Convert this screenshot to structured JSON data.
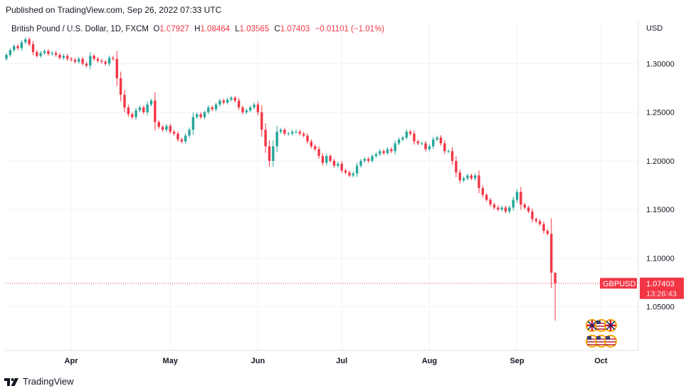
{
  "header": {
    "published": "Published on TradingView.com, Sep 26, 2022 07:33 UTC"
  },
  "legend": {
    "symbol": "British Pound / U.S. Dollar, 1D, FXCM",
    "o_label": "O",
    "o": "1.07927",
    "h_label": "H",
    "h": "1.08464",
    "l_label": "L",
    "l": "1.03565",
    "c_label": "C",
    "c": "1.07403",
    "change": "−0.01101 (−1.01%)"
  },
  "axis": {
    "currency": "USD"
  },
  "price_tag": {
    "symbol": "GBPUSD",
    "price": "1.07403",
    "countdown": "13:26:43"
  },
  "footer": {
    "brand": "TradingView"
  },
  "colors": {
    "up": "#26a69a",
    "down": "#f23645",
    "grid": "#f0f3fa",
    "tag": "#f23645"
  },
  "chart_data": {
    "type": "candlestick",
    "x_ticks": [
      {
        "label": "Apr",
        "index": 17
      },
      {
        "label": "May",
        "index": 43
      },
      {
        "label": "Jun",
        "index": 66
      },
      {
        "label": "Jul",
        "index": 88
      },
      {
        "label": "Aug",
        "index": 111
      },
      {
        "label": "Sep",
        "index": 134
      },
      {
        "label": "Oct",
        "index": 156
      }
    ],
    "y_ticks": [
      {
        "label": "1.30000",
        "value": 1.3
      },
      {
        "label": "1.25000",
        "value": 1.25
      },
      {
        "label": "1.20000",
        "value": 1.2
      },
      {
        "label": "1.15000",
        "value": 1.15
      },
      {
        "label": "1.10000",
        "value": 1.1
      },
      {
        "label": "1.05000",
        "value": 1.05
      }
    ],
    "ylim": [
      1.005,
      1.345
    ],
    "last_price": 1.07403,
    "closes": [
      1.309,
      1.314,
      1.318,
      1.316,
      1.322,
      1.325,
      1.32,
      1.312,
      1.308,
      1.311,
      1.313,
      1.31,
      1.311,
      1.309,
      1.306,
      1.308,
      1.305,
      1.304,
      1.302,
      1.305,
      1.3,
      1.298,
      1.308,
      1.305,
      1.303,
      1.302,
      1.3,
      1.306,
      1.305,
      1.285,
      1.268,
      1.255,
      1.248,
      1.245,
      1.252,
      1.255,
      1.25,
      1.258,
      1.262,
      1.24,
      1.235,
      1.232,
      1.236,
      1.23,
      1.228,
      1.222,
      1.22,
      1.226,
      1.232,
      1.245,
      1.248,
      1.245,
      1.25,
      1.255,
      1.253,
      1.258,
      1.262,
      1.26,
      1.263,
      1.265,
      1.262,
      1.255,
      1.25,
      1.252,
      1.255,
      1.258,
      1.25,
      1.232,
      1.215,
      1.2,
      1.215,
      1.23,
      1.232,
      1.228,
      1.228,
      1.23,
      1.23,
      1.228,
      1.226,
      1.22,
      1.215,
      1.212,
      1.205,
      1.198,
      1.205,
      1.2,
      1.195,
      1.197,
      1.19,
      1.188,
      1.185,
      1.187,
      1.195,
      1.2,
      1.202,
      1.2,
      1.205,
      1.207,
      1.21,
      1.208,
      1.212,
      1.21,
      1.218,
      1.222,
      1.224,
      1.23,
      1.228,
      1.22,
      1.218,
      1.218,
      1.212,
      1.215,
      1.222,
      1.224,
      1.218,
      1.21,
      1.21,
      1.2,
      1.188,
      1.18,
      1.182,
      1.185,
      1.182,
      1.185,
      1.172,
      1.165,
      1.16,
      1.155,
      1.152,
      1.15,
      1.152,
      1.148,
      1.152,
      1.16,
      1.168,
      1.155,
      1.152,
      1.148,
      1.14,
      1.138,
      1.135,
      1.128,
      1.125,
      1.085,
      1.074
    ]
  }
}
